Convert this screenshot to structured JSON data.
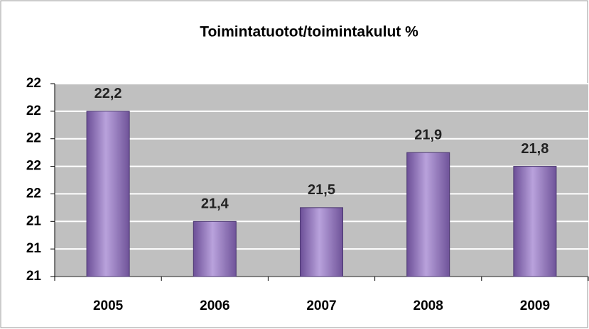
{
  "chart_data": {
    "type": "bar",
    "title": "Toimintatuotot/toimintakulut %",
    "categories": [
      "2005",
      "2006",
      "2007",
      "2008",
      "2009"
    ],
    "values": [
      22.2,
      21.4,
      21.5,
      21.9,
      21.8
    ],
    "value_labels": [
      "22,2",
      "21,4",
      "21,5",
      "21,9",
      "21,8"
    ],
    "color": "#9a7fc2",
    "ylim": [
      21,
      22.4
    ],
    "yticks": [
      21,
      {
        "value": 21.2,
        "label": "21"
      },
      {
        "value": 21.4,
        "label": "21"
      },
      {
        "value": 21.6,
        "label": "22"
      },
      {
        "value": 21.8,
        "label": "22"
      },
      22,
      {
        "value": 22.2,
        "label": "22"
      },
      {
        "value": 22.4,
        "label": "22"
      }
    ],
    "grid": true
  }
}
